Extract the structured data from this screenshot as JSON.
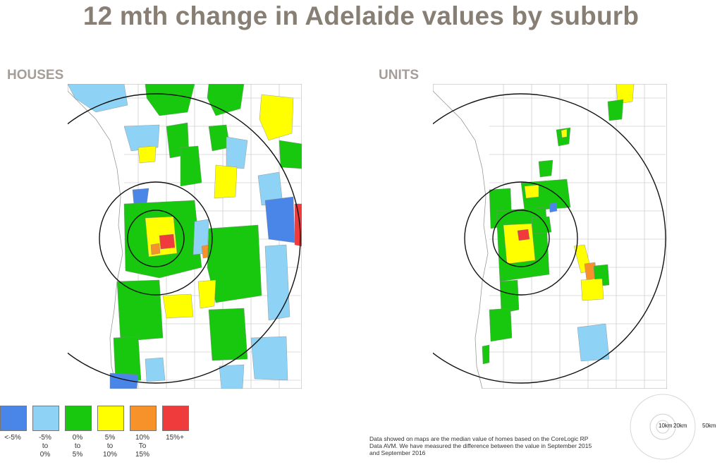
{
  "title": "12 mth change in Adelaide values by suburb",
  "panels": {
    "houses": {
      "label": "HOUSES"
    },
    "units": {
      "label": "UNITS"
    }
  },
  "legend": [
    {
      "lines": [
        "<-5%"
      ],
      "color": "#4a86e8"
    },
    {
      "lines": [
        "-5%",
        "to",
        "0%"
      ],
      "color": "#8ed3f6"
    },
    {
      "lines": [
        "0%",
        "to",
        "5%"
      ],
      "color": "#17c80e"
    },
    {
      "lines": [
        "5%",
        "to",
        "10%"
      ],
      "color": "#ffff00"
    },
    {
      "lines": [
        "10%",
        "To",
        "15%"
      ],
      "color": "#f7922b"
    },
    {
      "lines": [
        "15%+"
      ],
      "color": "#ef3b3b"
    }
  ],
  "note": {
    "lines": [
      "Data showed on maps are the median value of homes based on the CoreLogic RP",
      "Data AVM. We have measured the difference between the value in September 2015",
      "and September 2016"
    ]
  },
  "scale_rings": {
    "labels": [
      "10km",
      "20km",
      "50km"
    ]
  },
  "colors": {
    "title": "#877e74",
    "panel_label": "#a59e98",
    "ring": "#111111",
    "boundary": "#b8b8b8"
  }
}
